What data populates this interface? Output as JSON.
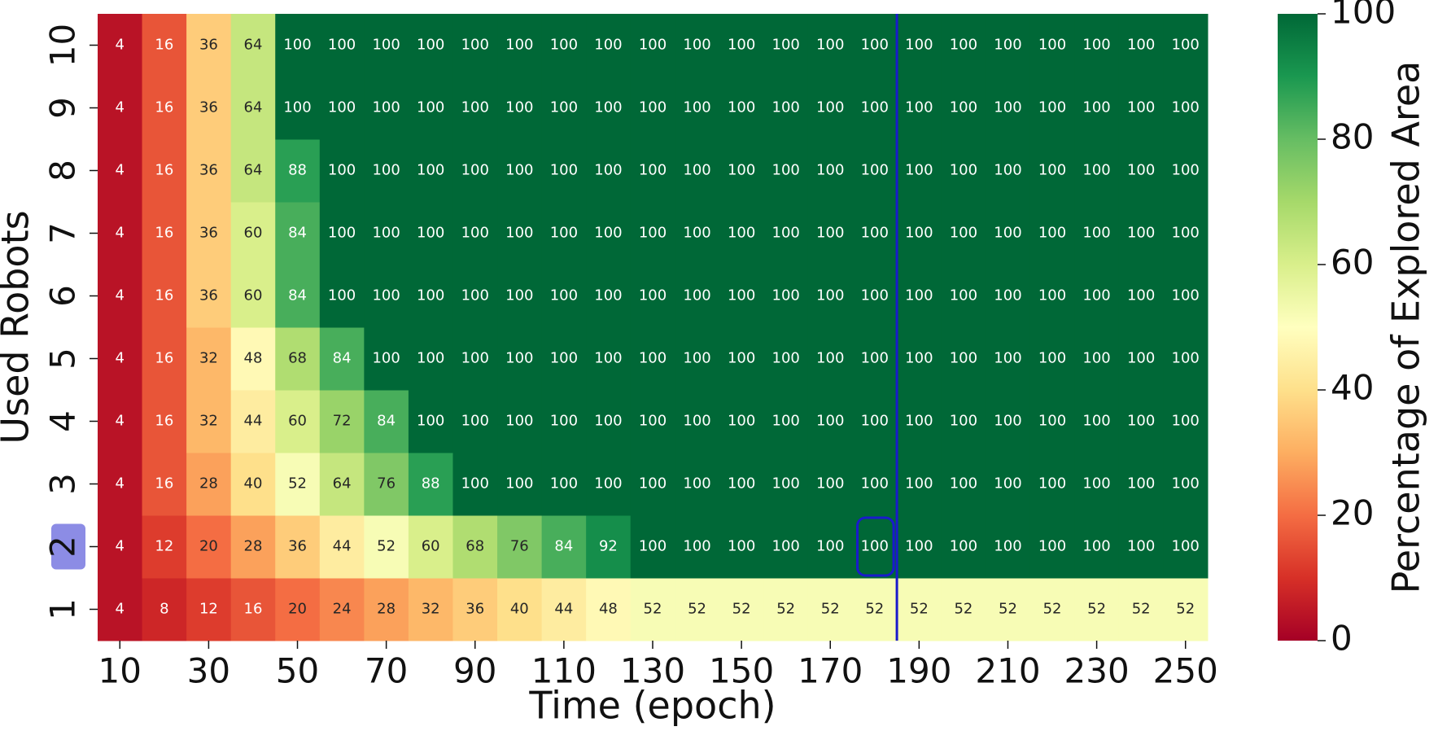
{
  "chart_data": {
    "type": "heatmap",
    "x_label": "Time (epoch)",
    "y_label": "Used Robots",
    "x": [
      10,
      20,
      30,
      40,
      50,
      60,
      70,
      80,
      90,
      100,
      110,
      120,
      130,
      140,
      150,
      160,
      170,
      180,
      190,
      200,
      210,
      220,
      230,
      240,
      250
    ],
    "y": [
      1,
      2,
      3,
      4,
      5,
      6,
      7,
      8,
      9,
      10
    ],
    "z": [
      [
        4,
        8,
        12,
        16,
        20,
        24,
        28,
        32,
        36,
        40,
        44,
        48,
        52,
        52,
        52,
        52,
        52,
        52,
        52,
        52,
        52,
        52,
        52,
        52,
        52
      ],
      [
        4,
        12,
        20,
        28,
        36,
        44,
        52,
        60,
        68,
        76,
        84,
        92,
        100,
        100,
        100,
        100,
        100,
        100,
        100,
        100,
        100,
        100,
        100,
        100,
        100
      ],
      [
        4,
        16,
        28,
        40,
        52,
        64,
        76,
        88,
        100,
        100,
        100,
        100,
        100,
        100,
        100,
        100,
        100,
        100,
        100,
        100,
        100,
        100,
        100,
        100,
        100
      ],
      [
        4,
        16,
        32,
        44,
        60,
        72,
        84,
        100,
        100,
        100,
        100,
        100,
        100,
        100,
        100,
        100,
        100,
        100,
        100,
        100,
        100,
        100,
        100,
        100,
        100
      ],
      [
        4,
        16,
        32,
        48,
        68,
        84,
        100,
        100,
        100,
        100,
        100,
        100,
        100,
        100,
        100,
        100,
        100,
        100,
        100,
        100,
        100,
        100,
        100,
        100,
        100
      ],
      [
        4,
        16,
        36,
        60,
        84,
        100,
        100,
        100,
        100,
        100,
        100,
        100,
        100,
        100,
        100,
        100,
        100,
        100,
        100,
        100,
        100,
        100,
        100,
        100,
        100
      ],
      [
        4,
        16,
        36,
        60,
        84,
        100,
        100,
        100,
        100,
        100,
        100,
        100,
        100,
        100,
        100,
        100,
        100,
        100,
        100,
        100,
        100,
        100,
        100,
        100,
        100
      ],
      [
        4,
        16,
        36,
        64,
        88,
        100,
        100,
        100,
        100,
        100,
        100,
        100,
        100,
        100,
        100,
        100,
        100,
        100,
        100,
        100,
        100,
        100,
        100,
        100,
        100
      ],
      [
        4,
        16,
        36,
        64,
        100,
        100,
        100,
        100,
        100,
        100,
        100,
        100,
        100,
        100,
        100,
        100,
        100,
        100,
        100,
        100,
        100,
        100,
        100,
        100,
        100
      ],
      [
        4,
        16,
        36,
        64,
        100,
        100,
        100,
        100,
        100,
        100,
        100,
        100,
        100,
        100,
        100,
        100,
        100,
        100,
        100,
        100,
        100,
        100,
        100,
        100,
        100
      ]
    ],
    "xlim": [
      5,
      255
    ],
    "ylim": [
      0.5,
      10.5
    ],
    "xticks": [
      10,
      30,
      50,
      70,
      90,
      110,
      130,
      150,
      170,
      190,
      210,
      230,
      250
    ],
    "colormap": "RdYlGn",
    "colorbar": {
      "label": "Percentage of Explored Area",
      "clim": [
        0,
        100
      ],
      "ticks": [
        0,
        20,
        40,
        60,
        80,
        100
      ]
    },
    "highlight_cell": {
      "x": 180,
      "y": 2
    },
    "highlight_color": "#1a1acc"
  }
}
